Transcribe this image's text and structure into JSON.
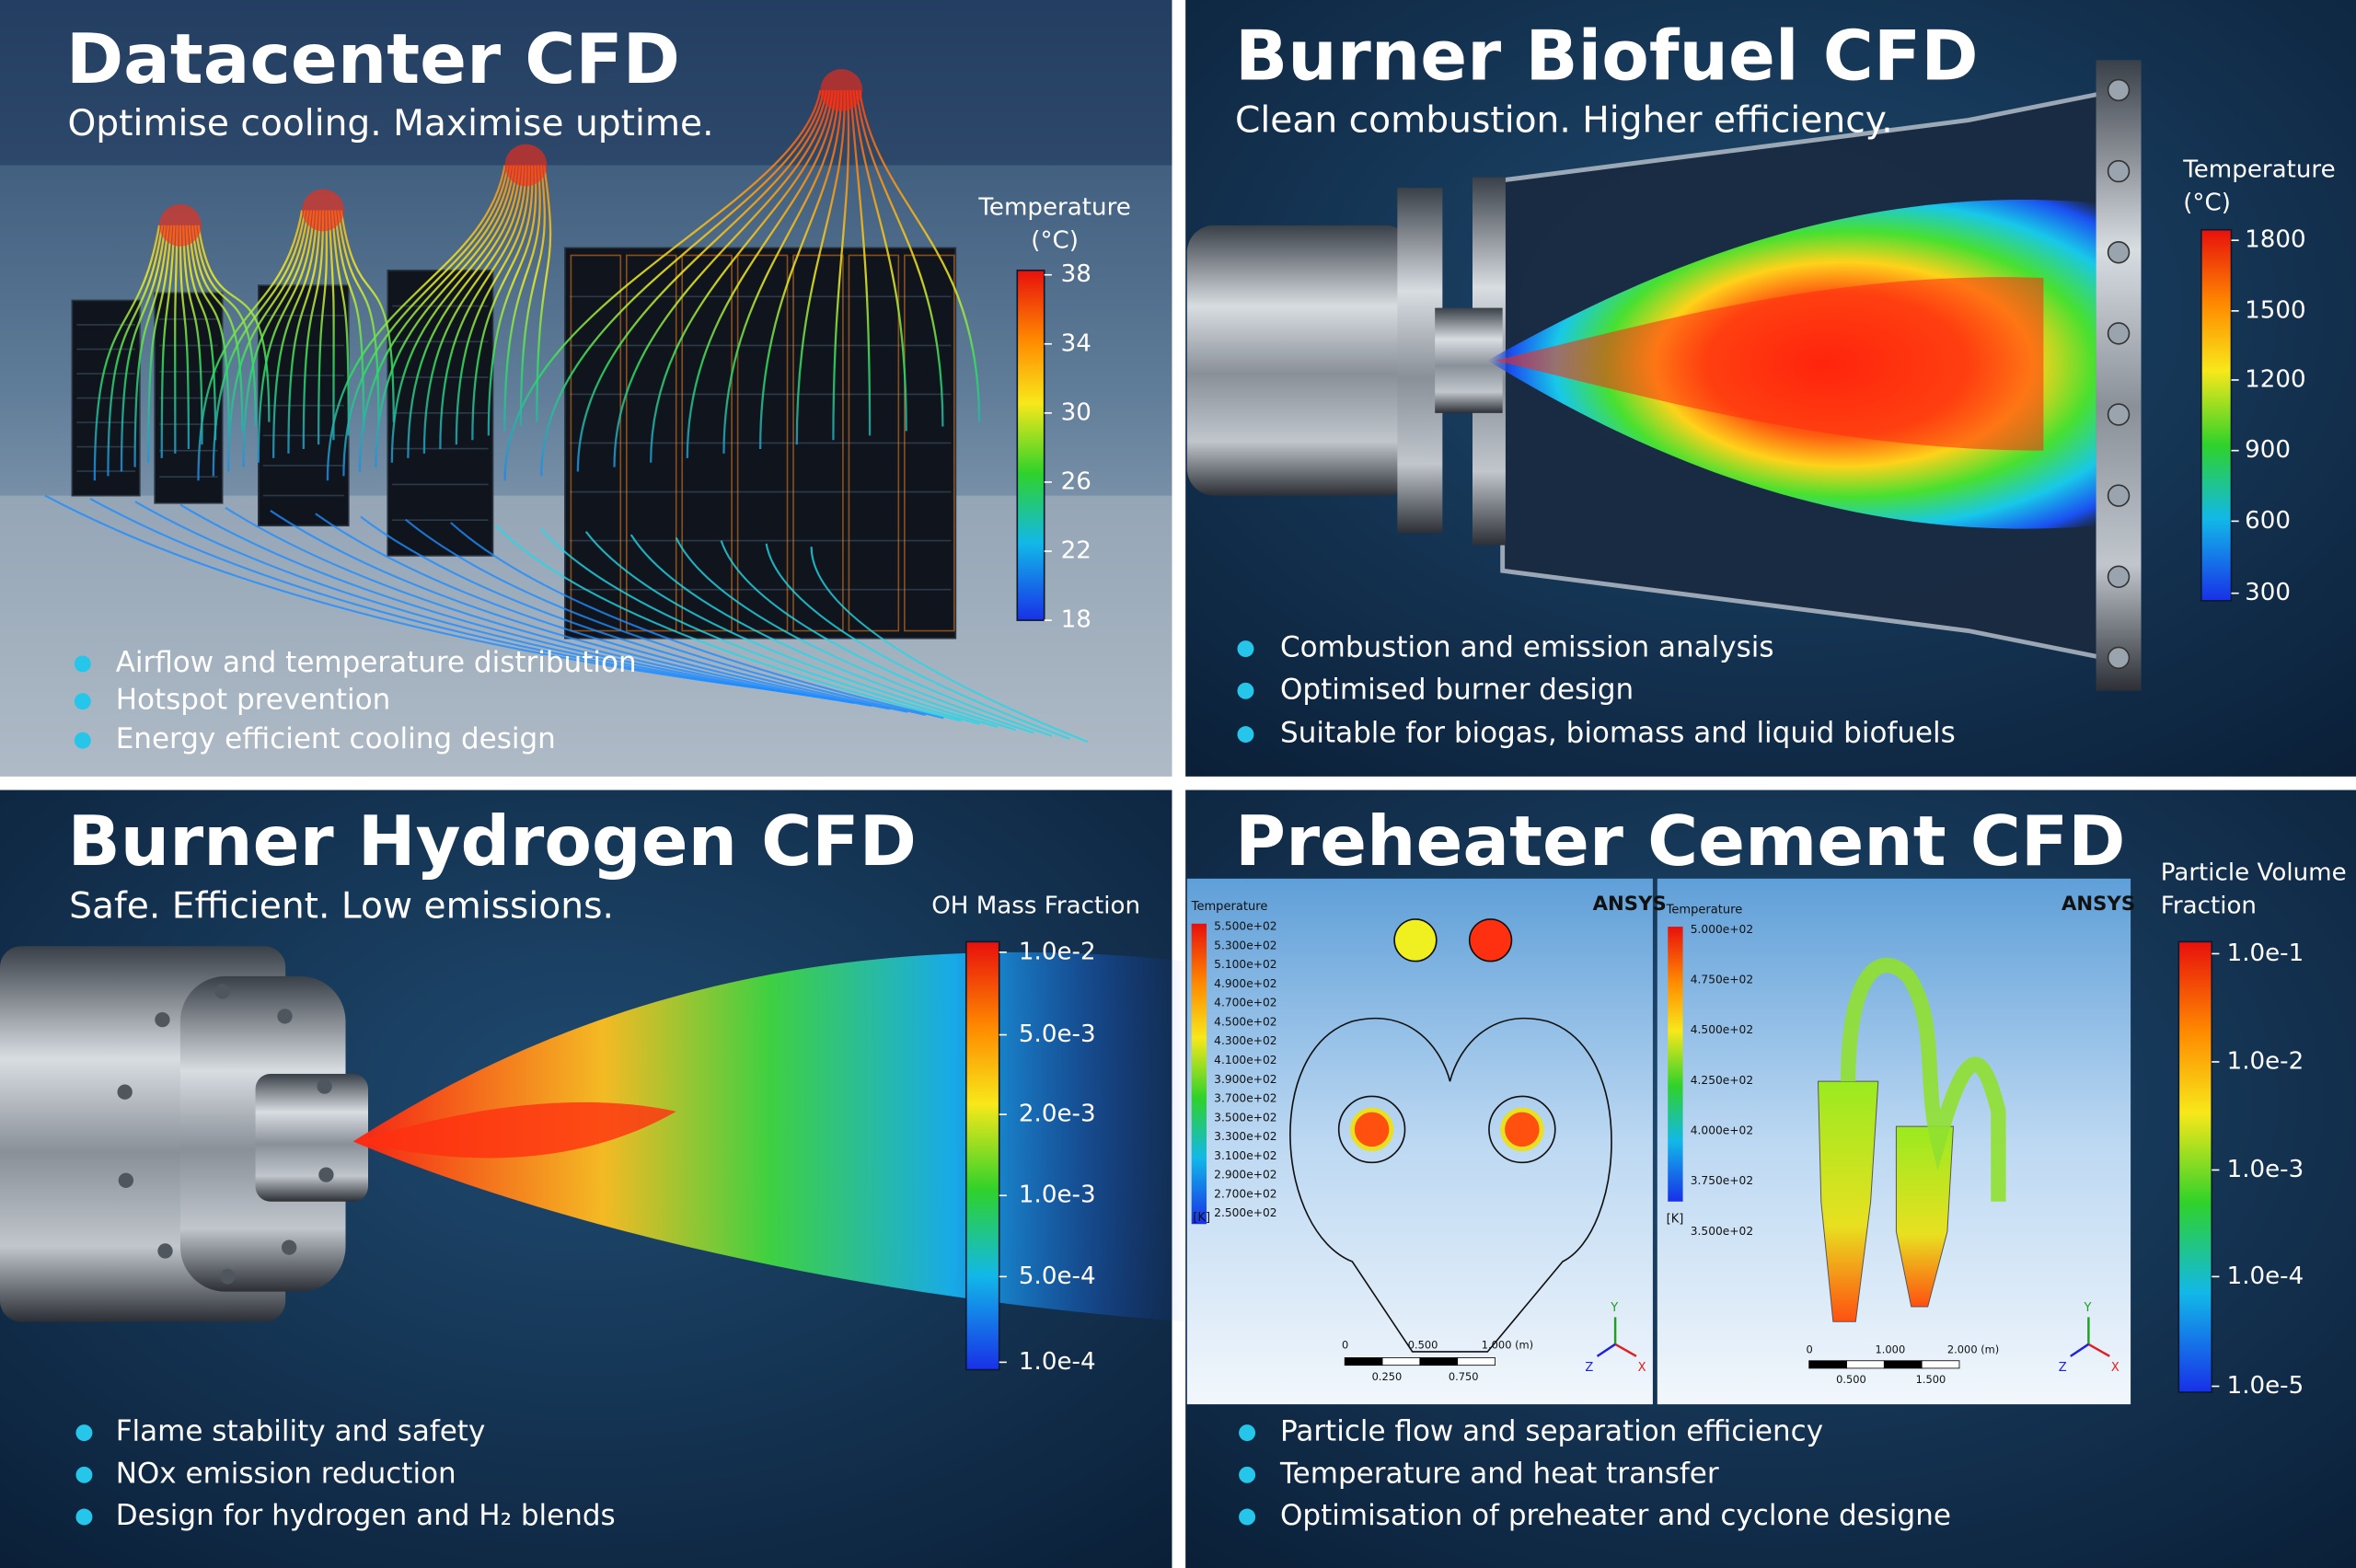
{
  "panels": [
    {
      "title": "Datacenter CFD",
      "subtitle": "Optimise cooling. Maximise uptime.",
      "legend": {
        "title_lines": [
          "Temperature",
          "(°C)"
        ],
        "ticks": [
          "38",
          "34",
          "30",
          "26",
          "22",
          "18"
        ]
      },
      "bullets": [
        "Airflow and temperature distribution",
        "Hotspot prevention",
        "Energy efficient cooling design"
      ]
    },
    {
      "title": "Burner Biofuel CFD",
      "subtitle": "Clean combustion. Higher efficiency.",
      "legend": {
        "title_lines": [
          "Temperature",
          "(°C)"
        ],
        "ticks": [
          "1800",
          "1500",
          "1200",
          "900",
          "600",
          "300"
        ]
      },
      "bullets": [
        "Combustion and emission analysis",
        "Optimised burner design",
        "Suitable for biogas, biomass and liquid biofuels"
      ]
    },
    {
      "title": "Burner Hydrogen CFD",
      "subtitle": "Safe. Efficient. Low emissions.",
      "legend": {
        "title_lines": [
          "OH Mass Fraction"
        ],
        "ticks": [
          "1.0e-2",
          "5.0e-3",
          "2.0e-3",
          "1.0e-3",
          "5.0e-4",
          "1.0e-4"
        ]
      },
      "bullets": [
        "Flame stability and safety",
        "NOx emission reduction",
        "Design for hydrogen and H₂ blends"
      ]
    },
    {
      "title": "Preheater Cement CFD",
      "legend": {
        "title_lines": [
          "Particle Volume",
          "Fraction"
        ],
        "ticks": [
          "1.0e-1",
          "1.0e-2",
          "1.0e-3",
          "1.0e-4",
          "1.0e-5"
        ]
      },
      "bullets": [
        "Particle flow and separation efficiency",
        "Temperature and heat transfer",
        "Optimisation of preheater and cyclone designe"
      ]
    }
  ],
  "ansys": {
    "left": {
      "brand": "ANSYS",
      "legend_title": "Temperature",
      "unit": "[K]",
      "legend_ticks": [
        "5.500e+02",
        "5.300e+02",
        "5.100e+02",
        "4.900e+02",
        "4.700e+02",
        "4.500e+02",
        "4.300e+02",
        "4.100e+02",
        "3.900e+02",
        "3.700e+02",
        "3.500e+02",
        "3.300e+02",
        "3.100e+02",
        "2.900e+02",
        "2.700e+02",
        "2.500e+02"
      ],
      "scale_top": [
        "0",
        "0.500",
        "1.000 (m)"
      ],
      "scale_bottom": [
        "0.250",
        "0.750"
      ],
      "axes": [
        "Y",
        "Z",
        "X"
      ]
    },
    "right": {
      "brand": "ANSYS",
      "legend_title": "Temperature",
      "unit": "[K]",
      "legend_ticks": [
        "5.000e+02",
        "4.750e+02",
        "4.500e+02",
        "4.250e+02",
        "4.000e+02",
        "3.750e+02",
        "3.500e+02"
      ],
      "scale_top": [
        "0",
        "1.000",
        "2.000 (m)"
      ],
      "scale_bottom": [
        "0.500",
        "1.500"
      ],
      "axes": [
        "Y",
        "Z",
        "X"
      ]
    }
  }
}
